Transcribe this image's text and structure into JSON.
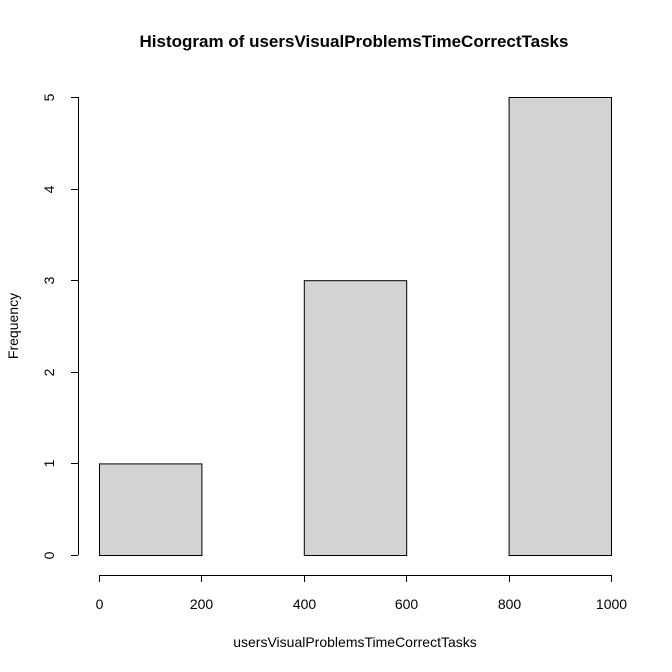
{
  "chart_data": {
    "type": "bar",
    "title": "Histogram of usersVisualProblemsTimeCorrectTasks",
    "xlabel": "usersVisualProblemsTimeCorrectTasks",
    "ylabel": "Frequency",
    "bins": [
      {
        "from": 0,
        "to": 200,
        "count": 1
      },
      {
        "from": 200,
        "to": 400,
        "count": 0
      },
      {
        "from": 400,
        "to": 600,
        "count": 3
      },
      {
        "from": 600,
        "to": 800,
        "count": 0
      },
      {
        "from": 800,
        "to": 1000,
        "count": 5
      }
    ],
    "xlim": [
      0,
      1000
    ],
    "ylim": [
      0,
      5
    ],
    "xticks": [
      0,
      200,
      400,
      600,
      800,
      1000
    ],
    "yticks": [
      0,
      1,
      2,
      3,
      4,
      5
    ],
    "bar_color": "#d3d3d3",
    "grid": false
  }
}
